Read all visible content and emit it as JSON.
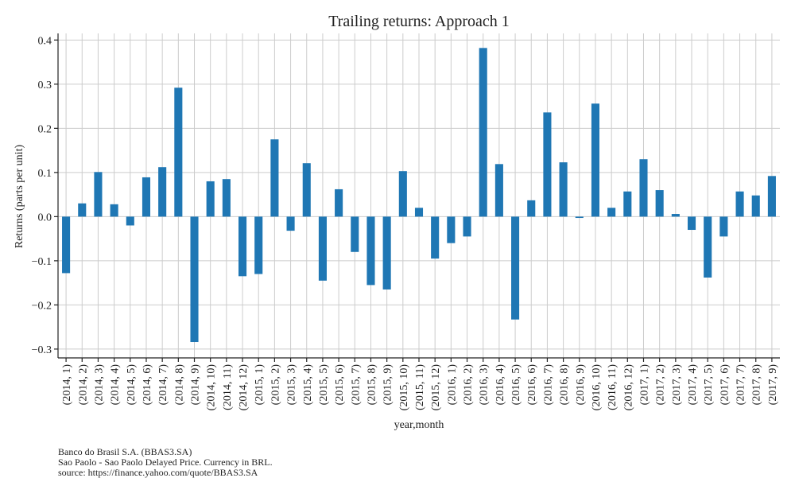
{
  "chart_data": {
    "type": "bar",
    "title": "Trailing returns: Approach 1",
    "xlabel": "year,month",
    "ylabel": "Returns (parts per unit)",
    "ylim": [
      -0.32,
      0.415
    ],
    "yticks": [
      -0.3,
      -0.2,
      -0.1,
      0.0,
      0.1,
      0.2,
      0.3,
      0.4
    ],
    "ytick_labels": [
      "−0.3",
      "−0.2",
      "−0.1",
      "0.0",
      "0.1",
      "0.2",
      "0.3",
      "0.4"
    ],
    "grid": true,
    "bar_color": "#1f77b4",
    "categories": [
      "(2014, 1)",
      "(2014, 2)",
      "(2014, 3)",
      "(2014, 4)",
      "(2014, 5)",
      "(2014, 6)",
      "(2014, 7)",
      "(2014, 8)",
      "(2014, 9)",
      "(2014, 10)",
      "(2014, 11)",
      "(2014, 12)",
      "(2015, 1)",
      "(2015, 2)",
      "(2015, 3)",
      "(2015, 4)",
      "(2015, 5)",
      "(2015, 6)",
      "(2015, 7)",
      "(2015, 8)",
      "(2015, 9)",
      "(2015, 10)",
      "(2015, 11)",
      "(2015, 12)",
      "(2016, 1)",
      "(2016, 2)",
      "(2016, 3)",
      "(2016, 4)",
      "(2016, 5)",
      "(2016, 6)",
      "(2016, 7)",
      "(2016, 8)",
      "(2016, 9)",
      "(2016, 10)",
      "(2016, 11)",
      "(2016, 12)",
      "(2017, 1)",
      "(2017, 2)",
      "(2017, 3)",
      "(2017, 4)",
      "(2017, 5)",
      "(2017, 6)",
      "(2017, 7)",
      "(2017, 8)",
      "(2017, 9)"
    ],
    "values": [
      -0.128,
      0.03,
      0.101,
      0.028,
      -0.02,
      0.089,
      0.112,
      0.292,
      -0.284,
      0.08,
      0.085,
      -0.135,
      -0.13,
      0.175,
      -0.032,
      0.121,
      -0.145,
      0.062,
      -0.08,
      -0.155,
      -0.165,
      0.103,
      0.02,
      -0.095,
      -0.06,
      -0.045,
      0.382,
      0.119,
      -0.233,
      0.037,
      0.236,
      0.123,
      -0.003,
      0.256,
      0.02,
      0.057,
      0.13,
      0.06,
      0.006,
      -0.03,
      -0.138,
      -0.045,
      0.057,
      0.048,
      0.092
    ]
  },
  "footer": {
    "line1": "Banco do Brasil S.A. (BBAS3.SA)",
    "line2": "Sao Paolo - Sao Paolo Delayed Price. Currency in BRL.",
    "line3": "source: https://finance.yahoo.com/quote/BBAS3.SA"
  }
}
